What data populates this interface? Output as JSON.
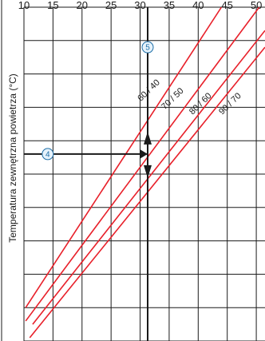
{
  "chart_data": {
    "type": "line",
    "title": "",
    "xlabel": "",
    "ylabel": "Temperatura zewnętrzna powietrza (°C)",
    "xlim": [
      10,
      51.5
    ],
    "ylim": [
      0,
      10
    ],
    "x_ticks": [
      10,
      15,
      20,
      25,
      30,
      35,
      40,
      45,
      50
    ],
    "y_gridlines": [
      0,
      1,
      2,
      3,
      4,
      5,
      6,
      7,
      8,
      9,
      10
    ],
    "x_gridlines": [
      10,
      15,
      20,
      25,
      30,
      35,
      40,
      45,
      50
    ],
    "grid": true,
    "series": [
      {
        "name": "60 / 40",
        "x": [
          10.3,
          44.0
        ],
        "y": [
          1.0,
          10.0
        ],
        "color": "#e8202a"
      },
      {
        "name": "70 / 50",
        "x": [
          10.3,
          50.5
        ],
        "y": [
          0.6,
          10.0
        ],
        "color": "#e8202a"
      },
      {
        "name": "80 / 60",
        "x": [
          11.5,
          51.5
        ],
        "y": [
          0.5,
          9.3
        ],
        "color": "#e8202a"
      },
      {
        "name": "90 / 70",
        "x": [
          11.0,
          51.5
        ],
        "y": [
          0.1,
          8.8
        ],
        "color": "#e8202a"
      }
    ],
    "series_labels": [
      {
        "text": "60 / 40",
        "x": 31.8,
        "y": 7.45
      },
      {
        "text": "70 / 50",
        "x": 35.9,
        "y": 7.2
      },
      {
        "text": "80 / 60",
        "x": 40.7,
        "y": 7.05
      },
      {
        "text": "90 / 70",
        "x": 45.8,
        "y": 7.05
      }
    ],
    "annotations": [
      {
        "id": "marker-5",
        "text": "5",
        "x": 31.3,
        "y": 8.8
      },
      {
        "id": "marker-4",
        "text": "4",
        "x": 14.1,
        "y": 5.6
      }
    ],
    "guide_lines": {
      "vertical_x": 31.3,
      "horizontal_y": 5.6
    },
    "colors": {
      "curve": "#e8202a",
      "grid": "#1a1a1a",
      "guide": "#1a1a1a",
      "marker_stroke": "#1e6fa8",
      "marker_fill": "#e6f2fb"
    }
  }
}
